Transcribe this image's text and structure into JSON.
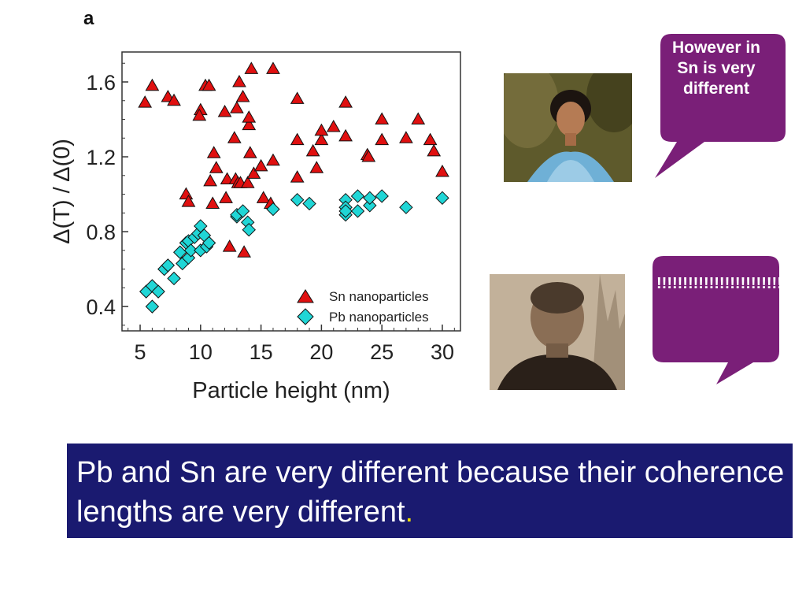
{
  "panel_letter": "a",
  "chart_data": {
    "type": "scatter",
    "title": "",
    "xlabel": "Particle height (nm)",
    "ylabel": "Δ(T) / Δ(0)",
    "xlim": [
      3.5,
      31.5
    ],
    "ylim": [
      0.27,
      1.76
    ],
    "xticks": [
      5,
      10,
      15,
      20,
      25,
      30
    ],
    "yticks": [
      0.4,
      0.8,
      1.2,
      1.6
    ],
    "xtick_labels": [
      "5",
      "10",
      "15",
      "20",
      "25",
      "30"
    ],
    "ytick_labels": [
      "0.4",
      "0.8",
      "1.2",
      "1.6"
    ],
    "legend_position": "bottom-right",
    "series": [
      {
        "name": "Sn nanoparticles",
        "marker": "triangle",
        "color": "#e01010",
        "points": [
          [
            5.4,
            1.49
          ],
          [
            6,
            1.58
          ],
          [
            7.3,
            1.52
          ],
          [
            7.8,
            1.5
          ],
          [
            8.8,
            1
          ],
          [
            9,
            0.96
          ],
          [
            10,
            1.45
          ],
          [
            9.9,
            1.42
          ],
          [
            10.4,
            1.58
          ],
          [
            10.7,
            1.58
          ],
          [
            10.8,
            1.07
          ],
          [
            11,
            0.95
          ],
          [
            11.1,
            1.22
          ],
          [
            11.3,
            1.14
          ],
          [
            12,
            1.44
          ],
          [
            12.1,
            0.98
          ],
          [
            12.2,
            1.08
          ],
          [
            12.4,
            0.72
          ],
          [
            12.8,
            1.3
          ],
          [
            12.9,
            1.08
          ],
          [
            13,
            1.46
          ],
          [
            13.1,
            1.06
          ],
          [
            13.3,
            1.06
          ],
          [
            13.2,
            1.6
          ],
          [
            13.5,
            1.52
          ],
          [
            13.6,
            0.69
          ],
          [
            13.9,
            1.06
          ],
          [
            14,
            1.37
          ],
          [
            14,
            1.41
          ],
          [
            14.1,
            1.22
          ],
          [
            14.2,
            1.67
          ],
          [
            14.4,
            1.11
          ],
          [
            15,
            1.15
          ],
          [
            15.2,
            0.98
          ],
          [
            15.8,
            0.95
          ],
          [
            16,
            1.67
          ],
          [
            16,
            1.18
          ],
          [
            18,
            1.51
          ],
          [
            18,
            1.09
          ],
          [
            18,
            1.29
          ],
          [
            19.3,
            1.23
          ],
          [
            19.6,
            1.14
          ],
          [
            20,
            1.29
          ],
          [
            20,
            1.34
          ],
          [
            21,
            1.36
          ],
          [
            22,
            1.49
          ],
          [
            22,
            1.31
          ],
          [
            23.8,
            1.21
          ],
          [
            23.9,
            1.2
          ],
          [
            25,
            1.4
          ],
          [
            25,
            1.29
          ],
          [
            27,
            1.3
          ],
          [
            28,
            1.4
          ],
          [
            29,
            1.29
          ],
          [
            29.3,
            1.23
          ],
          [
            30,
            1.12
          ]
        ]
      },
      {
        "name": "Pb nanoparticles",
        "marker": "diamond",
        "color": "#20d6d6",
        "points": [
          [
            5.5,
            0.48
          ],
          [
            6,
            0.4
          ],
          [
            6,
            0.51
          ],
          [
            6.5,
            0.48
          ],
          [
            7,
            0.6
          ],
          [
            7.3,
            0.62
          ],
          [
            7.8,
            0.55
          ],
          [
            8.3,
            0.69
          ],
          [
            8.5,
            0.63
          ],
          [
            8.8,
            0.74
          ],
          [
            9,
            0.66
          ],
          [
            9,
            0.75
          ],
          [
            9.2,
            0.7
          ],
          [
            9.5,
            0.77
          ],
          [
            9.8,
            0.79
          ],
          [
            10,
            0.7
          ],
          [
            10,
            0.83
          ],
          [
            10.3,
            0.78
          ],
          [
            10.5,
            0.72
          ],
          [
            10.7,
            0.74
          ],
          [
            13,
            0.88
          ],
          [
            13,
            0.89
          ],
          [
            13.5,
            0.91
          ],
          [
            13.9,
            0.85
          ],
          [
            14,
            0.81
          ],
          [
            16,
            0.92
          ],
          [
            18,
            0.97
          ],
          [
            19,
            0.95
          ],
          [
            22,
            0.97
          ],
          [
            22,
            0.93
          ],
          [
            22,
            0.89
          ],
          [
            22,
            0.91
          ],
          [
            23,
            0.91
          ],
          [
            23,
            0.99
          ],
          [
            24,
            0.94
          ],
          [
            24,
            0.98
          ],
          [
            25,
            0.99
          ],
          [
            27,
            0.93
          ],
          [
            30,
            0.98
          ]
        ]
      }
    ]
  },
  "photos": {
    "woman": "portrait photo of young woman",
    "man": "portrait photo of man"
  },
  "bubbles": {
    "bubble1": "However in Sn is very different",
    "bubble2": "!!!!!!!!!!!!!!!!!!!!!!!!!!!",
    "color": "#7a1f78"
  },
  "caption": {
    "text": "Pb and Sn are very different because their coherence lengths are very  different",
    "end": ".",
    "background": "#1a1a70"
  }
}
